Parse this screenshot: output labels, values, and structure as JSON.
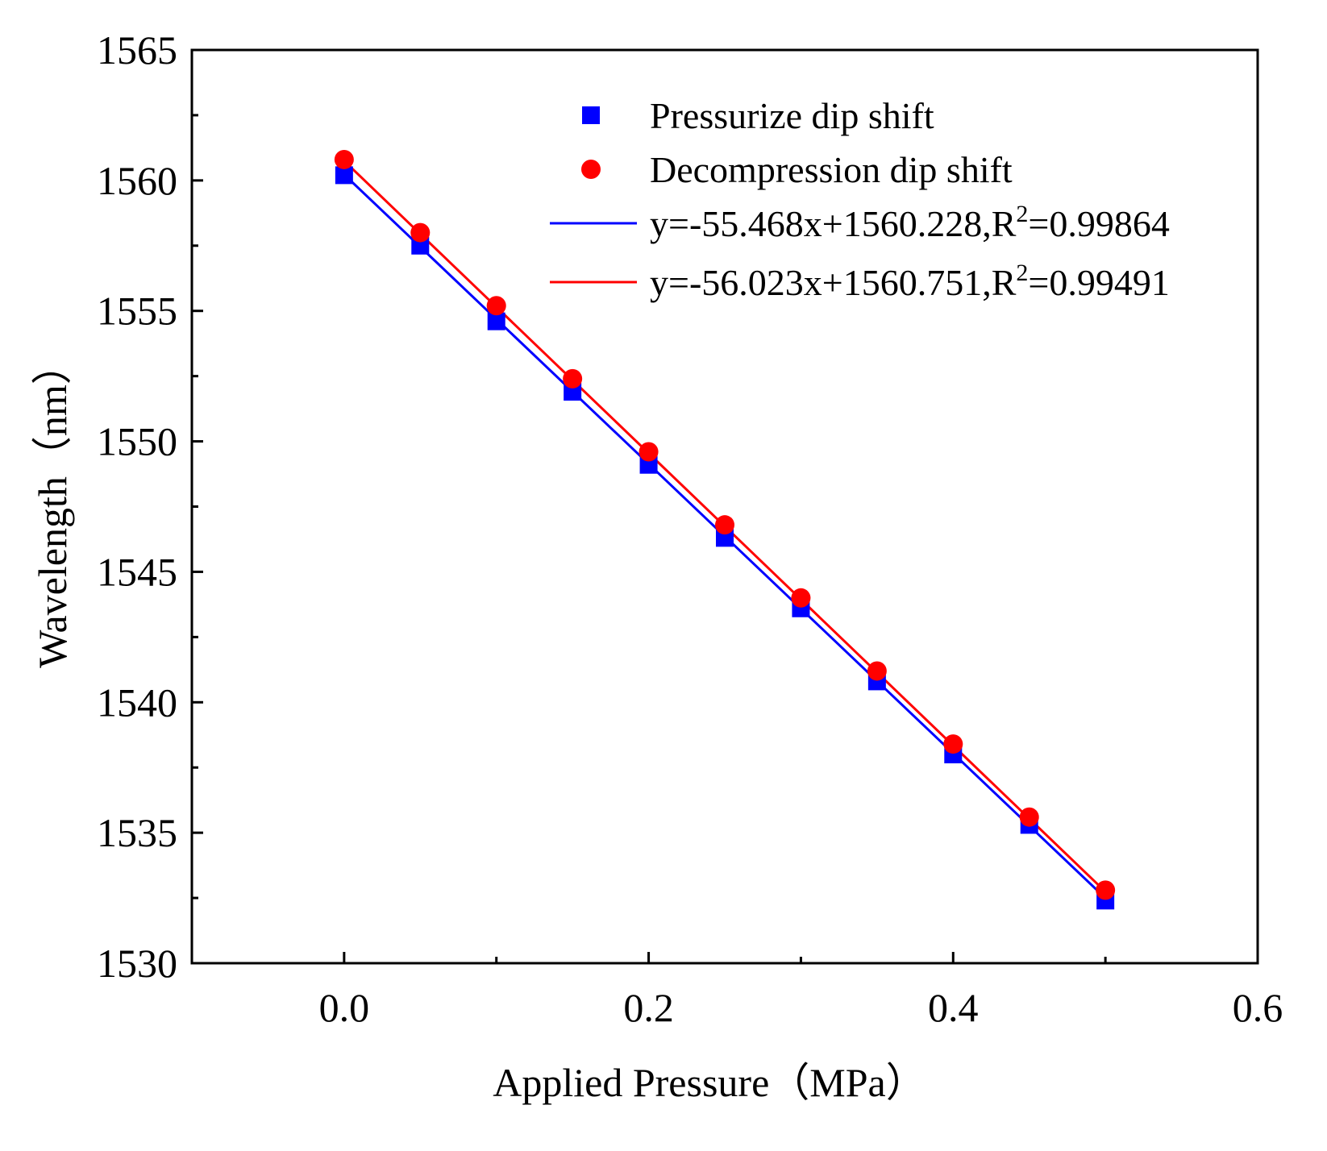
{
  "chart_data": {
    "type": "scatter",
    "title": "",
    "xlabel": "Applied Pressure（MPa）",
    "ylabel": "Wavelength（nm）",
    "xlim": [
      -0.1,
      0.6
    ],
    "ylim": [
      1530,
      1565
    ],
    "xticks": [
      "0.0",
      "0.2",
      "0.4",
      "0.6"
    ],
    "yticks": [
      "1530",
      "1535",
      "1540",
      "1545",
      "1550",
      "1555",
      "1560",
      "1565"
    ],
    "x": [
      0.0,
      0.05,
      0.1,
      0.15,
      0.2,
      0.25,
      0.3,
      0.35,
      0.4,
      0.45,
      0.5
    ],
    "series": [
      {
        "name": "Pressurize dip shift",
        "marker": "square",
        "color": "#0000ff",
        "values": [
          1560.2,
          1557.5,
          1554.6,
          1551.9,
          1549.1,
          1546.3,
          1543.6,
          1540.8,
          1538.0,
          1535.3,
          1532.4
        ]
      },
      {
        "name": "Decompression dip shift",
        "marker": "circle",
        "color": "#ff0000",
        "values": [
          1560.8,
          1558.0,
          1555.2,
          1552.4,
          1549.6,
          1546.8,
          1544.0,
          1541.2,
          1538.4,
          1535.6,
          1532.8
        ]
      }
    ],
    "fits": [
      {
        "label_prefix": "y=-55.468x+1560.228,R",
        "label_sup": "2",
        "label_suffix": "=0.99864",
        "color": "#0000ff",
        "slope": -55.468,
        "intercept": 1560.228,
        "x_range": [
          0.0,
          0.5
        ]
      },
      {
        "label_prefix": "y=-56.023x+1560.751,R",
        "label_sup": "2",
        "label_suffix": "=0.99491",
        "color": "#ff0000",
        "slope": -56.023,
        "intercept": 1560.751,
        "x_range": [
          0.0,
          0.5
        ]
      }
    ],
    "legend_position": "top-right",
    "grid": false
  }
}
